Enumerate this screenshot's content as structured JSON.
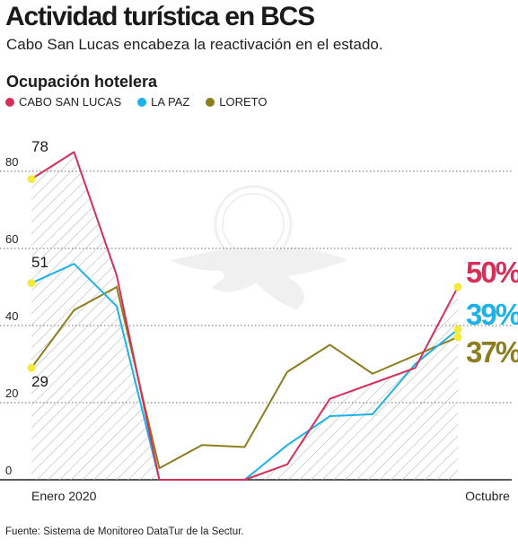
{
  "header": {
    "title": "Actividad turística en BCS",
    "subtitle": "Cabo San Lucas encabeza la reactivación en el estado.",
    "section": "Ocupación hotelera"
  },
  "legend": [
    {
      "label": "CABO SAN LUCAS",
      "color": "#d6305a"
    },
    {
      "label": "LA PAZ",
      "color": "#1ab2e8"
    },
    {
      "label": "LORETO",
      "color": "#8c7d1e"
    }
  ],
  "source": "Fuente: Sistema de Monitoreo DataTur de la Sectur.",
  "chart_data": {
    "type": "line",
    "x_labels": [
      "Enero 2020",
      "Octubre"
    ],
    "ylim": [
      0,
      100
    ],
    "yticks": [
      0,
      20,
      40,
      60,
      80
    ],
    "grid": true,
    "series": [
      {
        "name": "CABO SAN LUCAS",
        "color": "#d6305a",
        "values": [
          78,
          85,
          53,
          0,
          0,
          0,
          4,
          21,
          25,
          29,
          50
        ],
        "start_label": "78",
        "end_label": "50%"
      },
      {
        "name": "LA PAZ",
        "color": "#1ab2e8",
        "values": [
          51,
          56,
          45,
          0,
          0,
          0,
          9,
          16.5,
          17,
          30,
          39
        ],
        "start_label": "51",
        "end_label": "39%"
      },
      {
        "name": "LORETO",
        "color": "#8c7d1e",
        "values": [
          29,
          44,
          50,
          3,
          9,
          8,
          28,
          35,
          27,
          37
        ],
        "x_offsets": [
          0,
          1,
          2,
          3,
          4,
          5,
          6,
          7,
          8,
          9
        ],
        "start_label": "29",
        "end_label": "37%"
      }
    ],
    "loreto_values": [
      29,
      44,
      50,
      3,
      9,
      8.5,
      28,
      35,
      27.5,
      37
    ],
    "cabo_values": [
      78,
      85,
      53,
      0,
      0,
      0,
      4,
      21,
      25,
      29,
      50
    ]
  }
}
